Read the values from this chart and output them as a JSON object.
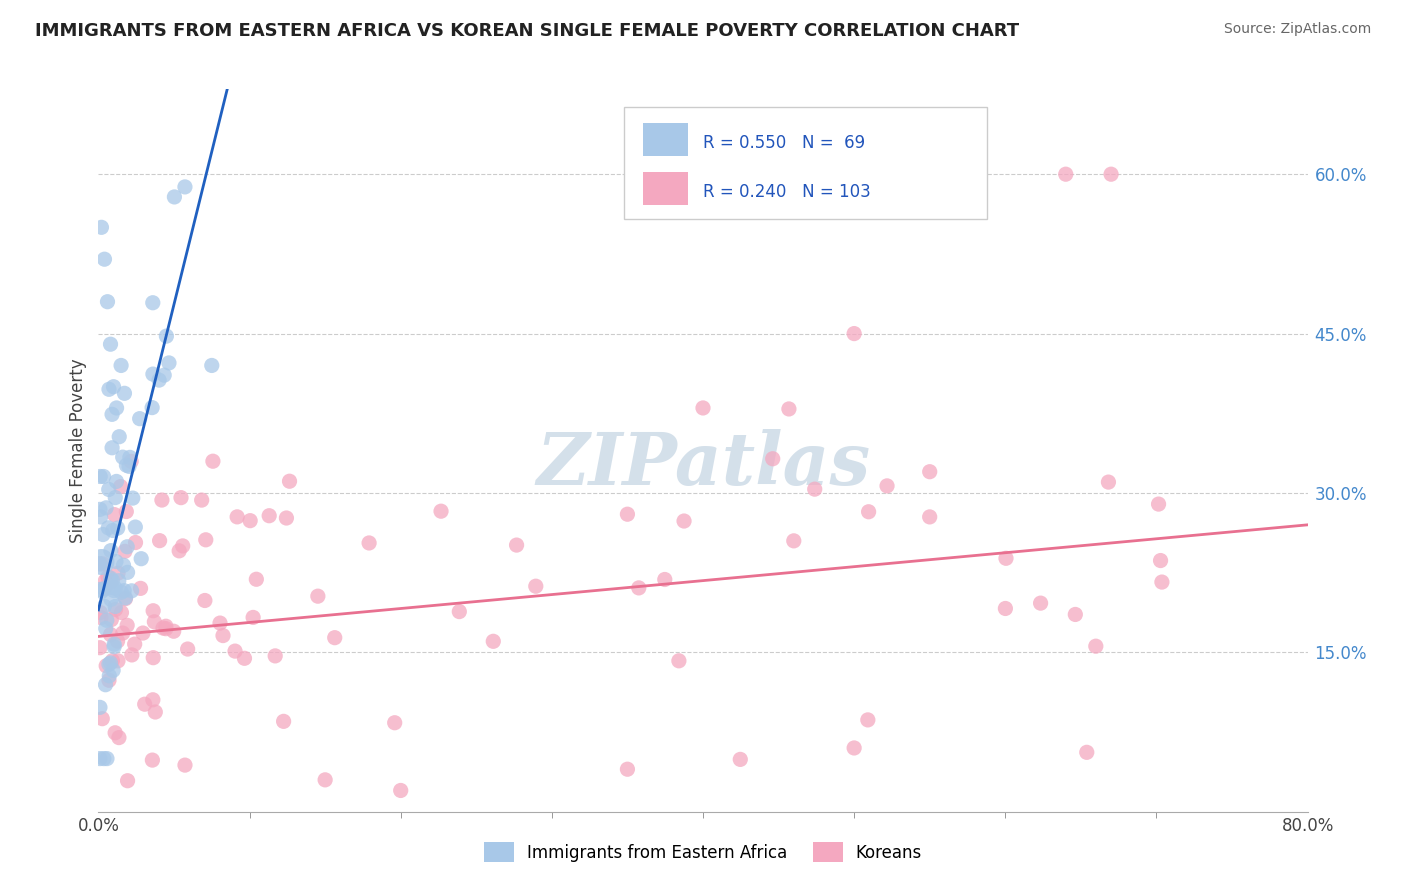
{
  "title": "IMMIGRANTS FROM EASTERN AFRICA VS KOREAN SINGLE FEMALE POVERTY CORRELATION CHART",
  "source": "Source: ZipAtlas.com",
  "ylabel": "Single Female Poverty",
  "right_yticks": [
    "15.0%",
    "30.0%",
    "45.0%",
    "60.0%"
  ],
  "right_ytick_vals": [
    0.15,
    0.3,
    0.45,
    0.6
  ],
  "xlim": [
    0.0,
    0.8
  ],
  "ylim": [
    0.0,
    0.68
  ],
  "blue_R": 0.55,
  "blue_N": 69,
  "pink_R": 0.24,
  "pink_N": 103,
  "blue_color": "#a8c8e8",
  "pink_color": "#f4a8c0",
  "blue_line_color": "#2060c0",
  "pink_line_color": "#e87090",
  "watermark_text": "ZIPatlas",
  "watermark_color": "#d0dde8",
  "legend_label_blue": "Immigrants from Eastern Africa",
  "legend_label_pink": "Koreans",
  "blue_line_x0": 0.0,
  "blue_line_y0": 0.19,
  "blue_line_x1": 0.08,
  "blue_line_y1": 0.65,
  "pink_line_x0": 0.0,
  "pink_line_y0": 0.165,
  "pink_line_x1": 0.8,
  "pink_line_y1": 0.27
}
